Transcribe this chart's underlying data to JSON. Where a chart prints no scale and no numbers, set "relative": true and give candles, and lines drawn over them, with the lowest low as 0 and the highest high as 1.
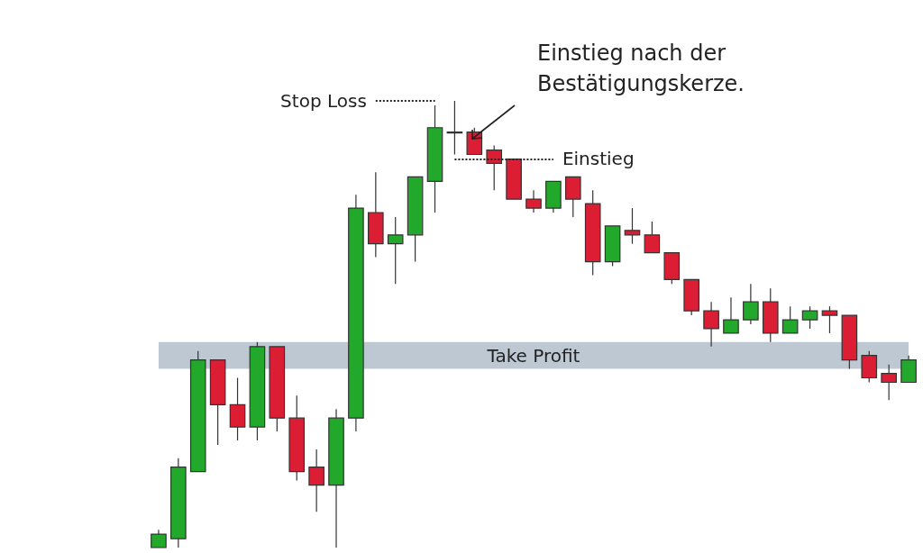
{
  "chart_data": {
    "type": "candlestick",
    "relative": true,
    "categories": [
      null,
      null,
      null,
      null,
      null,
      null,
      null,
      null,
      null,
      null,
      null,
      null,
      null,
      null,
      null,
      null,
      null,
      null,
      null,
      null,
      null,
      null,
      null,
      null,
      null,
      null,
      null,
      null,
      null,
      null,
      null,
      null,
      null,
      null,
      null,
      null,
      null,
      null,
      null
    ],
    "ohlc": [
      [
        0,
        0.04,
        0,
        0.03
      ],
      [
        0.02,
        0.2,
        0,
        0.18
      ],
      [
        0.17,
        0.44,
        0.17,
        0.42
      ],
      [
        0.42,
        0.42,
        0.23,
        0.32
      ],
      [
        0.32,
        0.38,
        0.24,
        0.27
      ],
      [
        0.27,
        0.46,
        0.24,
        0.45
      ],
      [
        0.45,
        0.45,
        0.26,
        0.29
      ],
      [
        0.29,
        0.34,
        0.15,
        0.17
      ],
      [
        0.18,
        0.22,
        0.08,
        0.14
      ],
      [
        0.14,
        0.31,
        0,
        0.29
      ],
      [
        0.29,
        0.79,
        0.26,
        0.76
      ],
      [
        0.75,
        0.84,
        0.65,
        0.68
      ],
      [
        0.68,
        0.74,
        0.59,
        0.7
      ],
      [
        0.7,
        0.83,
        0.64,
        0.83
      ],
      [
        0.82,
        0.99,
        0.75,
        0.94
      ],
      [
        0.93,
        1,
        0.88,
        0.93
      ],
      [
        0.93,
        0.94,
        0.88,
        0.88
      ],
      [
        0.89,
        0.9,
        0.8,
        0.86
      ],
      [
        0.87,
        0.87,
        0.78,
        0.78
      ],
      [
        0.78,
        0.8,
        0.75,
        0.76
      ],
      [
        0.76,
        0.82,
        0.75,
        0.82
      ],
      [
        0.83,
        0.83,
        0.74,
        0.78
      ],
      [
        0.77,
        0.8,
        0.61,
        0.64
      ],
      [
        0.64,
        0.72,
        0.63,
        0.72
      ],
      [
        0.71,
        0.76,
        0.68,
        0.7
      ],
      [
        0.7,
        0.73,
        0.66,
        0.66
      ],
      [
        0.66,
        0.66,
        0.59,
        0.6
      ],
      [
        0.6,
        0.6,
        0.52,
        0.53
      ],
      [
        0.53,
        0.55,
        0.45,
        0.49
      ],
      [
        0.48,
        0.56,
        0.48,
        0.51
      ],
      [
        0.51,
        0.59,
        0.5,
        0.55
      ],
      [
        0.55,
        0.58,
        0.46,
        0.48
      ],
      [
        0.48,
        0.54,
        0.48,
        0.51
      ],
      [
        0.51,
        0.54,
        0.49,
        0.53
      ],
      [
        0.53,
        0.54,
        0.48,
        0.52
      ],
      [
        0.52,
        0.52,
        0.4,
        0.42
      ],
      [
        0.43,
        0.44,
        0.37,
        0.38
      ],
      [
        0.39,
        0.41,
        0.33,
        0.37
      ],
      [
        0.37,
        0.43,
        0.37,
        0.42
      ]
    ],
    "colors": [
      "#22a82a",
      "#22a82a",
      "#22a82a",
      "#dc1e35",
      "#dc1e35",
      "#22a82a",
      "#dc1e35",
      "#dc1e35",
      "#dc1e35",
      "#22a82a",
      "#22a82a",
      "#dc1e35",
      "#22a82a",
      "#22a82a",
      "#22a82a",
      "#333333",
      "#dc1e35",
      "#dc1e35",
      "#dc1e35",
      "#dc1e35",
      "#22a82a",
      "#dc1e35",
      "#dc1e35",
      "#22a82a",
      "#dc1e35",
      "#dc1e35",
      "#dc1e35",
      "#dc1e35",
      "#dc1e35",
      "#22a82a",
      "#22a82a",
      "#dc1e35",
      "#22a82a",
      "#22a82a",
      "#dc1e35",
      "#dc1e35",
      "#dc1e35",
      "#dc1e35",
      "#22a82a"
    ],
    "bands": [
      {
        "axis": "y",
        "from": 0.4,
        "to": 0.46,
        "label": "Take Profit",
        "color": "#b6c2ce"
      }
    ],
    "ref_lines": [
      {
        "axis": "y",
        "value": 1,
        "label": "Stop Loss",
        "line_style": "dotted",
        "color": "#222222"
      },
      {
        "axis": "y",
        "value": 0.87,
        "label": "Einstieg",
        "line_style": "dotted",
        "color": "#222222"
      }
    ],
    "annotations": [
      "Einstieg nach der Bestätigungskerze."
    ]
  }
}
